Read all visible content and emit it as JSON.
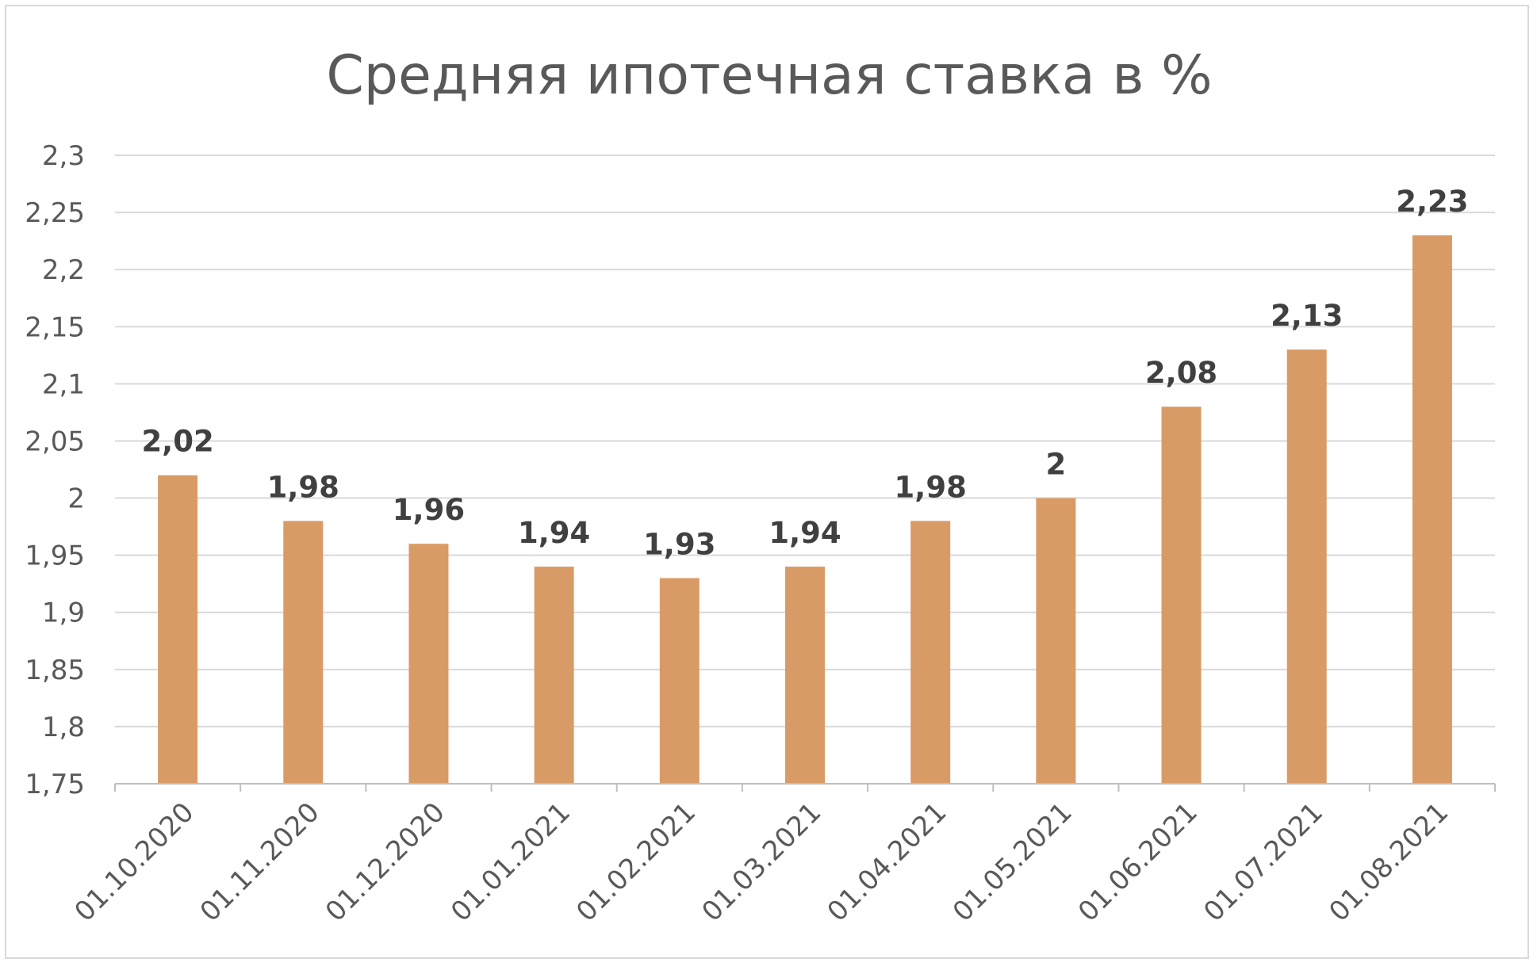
{
  "chart_data": {
    "type": "bar",
    "title": "Средняя ипотечная ставка в %",
    "xlabel": "",
    "ylabel": "",
    "categories": [
      "01.10.2020",
      "01.11.2020",
      "01.12.2020",
      "01.01.2021",
      "01.02.2021",
      "01.03.2021",
      "01.04.2021",
      "01.05.2021",
      "01.06.2021",
      "01.07.2021",
      "01.08.2021"
    ],
    "values": [
      2.02,
      1.98,
      1.96,
      1.94,
      1.93,
      1.94,
      1.98,
      2,
      2.08,
      2.13,
      2.23
    ],
    "value_labels": [
      "2,02",
      "1,98",
      "1,96",
      "1,94",
      "1,93",
      "1,94",
      "1,98",
      "2",
      "2,08",
      "2,13",
      "2,23"
    ],
    "ylim": [
      1.75,
      2.3
    ],
    "y_ticks": [
      1.75,
      1.8,
      1.85,
      1.9,
      1.95,
      2,
      2.05,
      2.1,
      2.15,
      2.2,
      2.25,
      2.3
    ],
    "y_tick_labels": [
      "1,75",
      "1,8",
      "1,85",
      "1,9",
      "1,95",
      "2",
      "2,05",
      "2,1",
      "2,15",
      "2,2",
      "2,25",
      "2,3"
    ],
    "grid": true,
    "legend": "none",
    "colors": {
      "bar": "#D99B66",
      "grid": "#d9d9d9",
      "axis": "#bfbfbf",
      "text": "#595959",
      "data_label": "#404040"
    }
  }
}
